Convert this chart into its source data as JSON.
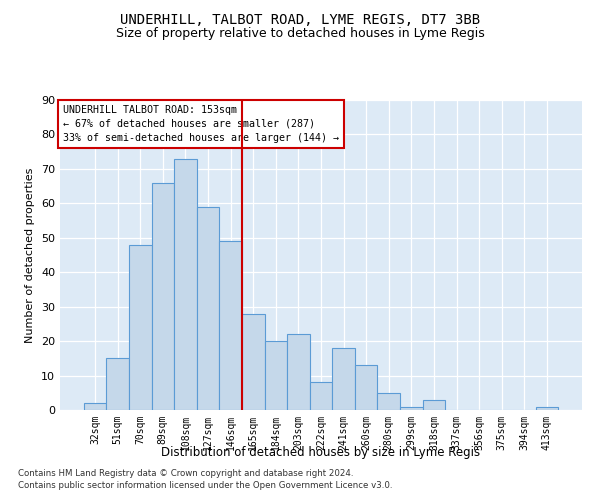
{
  "title1": "UNDERHILL, TALBOT ROAD, LYME REGIS, DT7 3BB",
  "title2": "Size of property relative to detached houses in Lyme Regis",
  "xlabel": "Distribution of detached houses by size in Lyme Regis",
  "ylabel": "Number of detached properties",
  "categories": [
    "32sqm",
    "51sqm",
    "70sqm",
    "89sqm",
    "108sqm",
    "127sqm",
    "146sqm",
    "165sqm",
    "184sqm",
    "203sqm",
    "222sqm",
    "241sqm",
    "260sqm",
    "280sqm",
    "299sqm",
    "318sqm",
    "337sqm",
    "356sqm",
    "375sqm",
    "394sqm",
    "413sqm"
  ],
  "values": [
    2,
    15,
    48,
    66,
    73,
    59,
    49,
    28,
    20,
    22,
    8,
    18,
    13,
    5,
    1,
    3,
    0,
    0,
    0,
    0,
    1
  ],
  "bar_color": "#c5d8ea",
  "bar_edge_color": "#5b9bd5",
  "vline_color": "#cc0000",
  "vline_pos": 6.5,
  "annotation_line1": "UNDERHILL TALBOT ROAD: 153sqm",
  "annotation_line2": "← 67% of detached houses are smaller (287)",
  "annotation_line3": "33% of semi-detached houses are larger (144) →",
  "ylim": [
    0,
    90
  ],
  "yticks": [
    0,
    10,
    20,
    30,
    40,
    50,
    60,
    70,
    80,
    90
  ],
  "footer1": "Contains HM Land Registry data © Crown copyright and database right 2024.",
  "footer2": "Contains public sector information licensed under the Open Government Licence v3.0.",
  "bg_color": "#ddeaf6"
}
